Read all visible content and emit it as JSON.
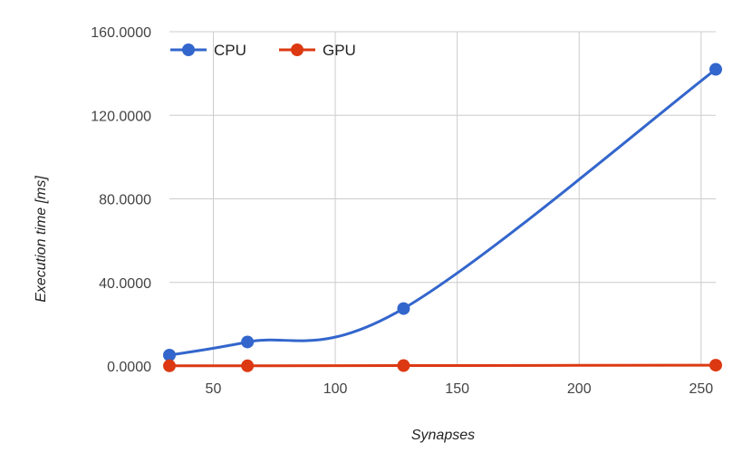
{
  "chart_data": {
    "type": "line",
    "title": "",
    "xlabel": "Synapses",
    "ylabel": "Execution time [ms]",
    "xlim": [
      32,
      256
    ],
    "ylim": [
      0,
      160
    ],
    "xticks": [
      50,
      100,
      150,
      200,
      250
    ],
    "yticks": [
      0,
      40,
      80,
      120,
      160
    ],
    "ytick_labels": [
      "0.0000",
      "40.0000",
      "80.0000",
      "120.0000",
      "160.0000"
    ],
    "grid": true,
    "legend_position": "top-left",
    "series": [
      {
        "name": "CPU",
        "color": "#3366cc",
        "x": [
          32,
          64,
          128,
          256
        ],
        "y": [
          5.2,
          11.5,
          27.5,
          142.0
        ]
      },
      {
        "name": "GPU",
        "color": "#dc3912",
        "x": [
          32,
          64,
          128,
          256
        ],
        "y": [
          0.1,
          0.1,
          0.2,
          0.4
        ]
      }
    ]
  }
}
